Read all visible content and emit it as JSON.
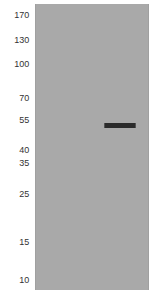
{
  "chart_data": {
    "type": "scatter",
    "marker": "band",
    "categories": [
      null,
      null
    ],
    "values": [
      null,
      52
    ],
    "color": "#2b2b2b",
    "log": "y",
    "ylim": [
      9,
      190
    ],
    "yticks": [
      170,
      130,
      100,
      70,
      55,
      40,
      35,
      25,
      15,
      10
    ],
    "tick_labels": "y",
    "grid": false
  }
}
